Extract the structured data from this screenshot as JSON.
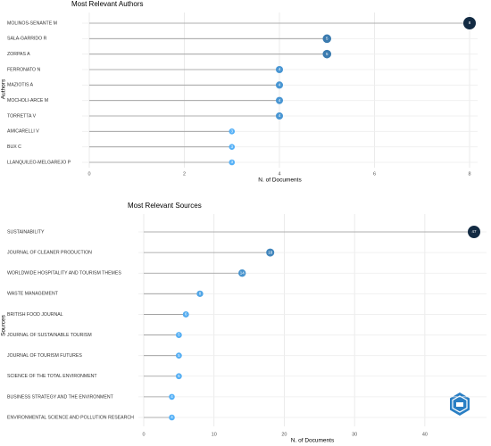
{
  "chart_data": [
    {
      "type": "lollipop",
      "title": "Most Relevant Authors",
      "x_label": "N. of Documents",
      "y_label": "Authors",
      "categories": [
        "MOLINOS-SENANTE M",
        "SALA-GARRIDO R",
        "ZORPAS A",
        "FERRONATO N",
        "MAZIOTIS A",
        "MOCHOLI-ARCE M",
        "TORRETTA V",
        "AMICARELLI V",
        "BUX C",
        "LLANQUILEO-MELGAREJO P"
      ],
      "values": [
        8,
        5,
        5,
        4,
        4,
        4,
        4,
        3,
        3,
        3
      ],
      "xlim": [
        0,
        8
      ],
      "xticks": [
        0,
        2,
        4,
        6,
        8
      ],
      "grid": true,
      "color_scale": [
        "#56B1F7",
        "#132B43"
      ],
      "line_color": "#999999"
    },
    {
      "type": "lollipop",
      "title": "Most Relevant Sources",
      "x_label": "N. of Documents",
      "y_label": "Sources",
      "categories": [
        "SUSTAINABILITY",
        "JOURNAL OF CLEANER PRODUCTION",
        "WORLDWIDE HOSPITALITY AND TOURISM THEMES",
        "WASTE MANAGEMENT",
        "BRITISH FOOD JOURNAL",
        "JOURNAL OF SUSTAINABLE TOURISM",
        "JOURNAL OF TOURISM FUTURES",
        "SCIENCE OF THE TOTAL ENVIRONMENT",
        "BUSINESS STRATEGY AND THE ENVIRONMENT",
        "ENVIRONMENTAL SCIENCE AND POLLUTION RESEARCH"
      ],
      "values": [
        47,
        18,
        14,
        8,
        6,
        5,
        5,
        5,
        4,
        4
      ],
      "xlim": [
        0,
        47
      ],
      "xticks": [
        0,
        10,
        20,
        30,
        40
      ],
      "grid": true,
      "color_scale": [
        "#56B1F7",
        "#132B43"
      ],
      "line_color": "#999999"
    }
  ]
}
